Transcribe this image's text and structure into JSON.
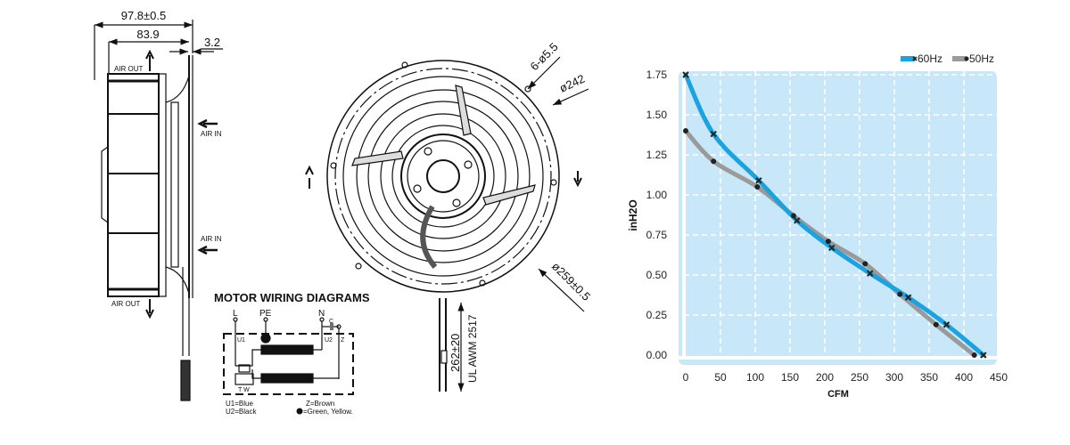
{
  "side_view": {
    "dim_overall": "97.8±0.5",
    "dim_body": "83.9",
    "dim_flange": "3.2",
    "air_out_top": "AIR OUT",
    "air_in_top": "AIR IN",
    "air_in_bottom": "AIR IN",
    "air_out_bottom": "AIR OUT"
  },
  "front_view": {
    "holes": "6-ø5.5",
    "bolt_circle": "ø242",
    "outer_diameter": "ø259±0.5",
    "lead_length": "262±20",
    "lead_spec": "UL AWM 2517"
  },
  "wiring": {
    "title": "MOTOR WIRING DIAGRAMS",
    "terminal_l": "L",
    "terminal_pe": "PE",
    "terminal_n": "N",
    "cap": "C",
    "u1": "U1",
    "u2": "U2",
    "z": "Z",
    "tw": "T W",
    "legend_u1": "U1=Blue",
    "legend_u2": "U2=Black",
    "legend_z": "Z=Brown",
    "legend_pe": "=Green, Yellow."
  },
  "chart_data": {
    "type": "line",
    "xlabel": "CFM",
    "ylabel": "inH2O",
    "xlim": [
      0,
      450
    ],
    "ylim": [
      0,
      1.75
    ],
    "x_ticks": [
      "0",
      "50",
      "100",
      "150",
      "200",
      "250",
      "300",
      "350",
      "400",
      "450"
    ],
    "y_ticks": [
      "0.00",
      "0.25",
      "0.50",
      "0.75",
      "1.00",
      "1.25",
      "1.50",
      "1.75"
    ],
    "grid": true,
    "legend_position": "top-right",
    "background_color": "#c8e7f8",
    "series": [
      {
        "name": "60Hz",
        "color": "#1aa3e0",
        "marker": "x",
        "x": [
          0,
          40,
          105,
          160,
          210,
          265,
          320,
          375,
          428
        ],
        "y": [
          1.75,
          1.38,
          1.09,
          0.84,
          0.67,
          0.51,
          0.36,
          0.19,
          0.0
        ]
      },
      {
        "name": "50Hz",
        "color": "#9a9a9a",
        "marker": "dot",
        "x": [
          0,
          40,
          103,
          155,
          205,
          258,
          308,
          360,
          415
        ],
        "y": [
          1.4,
          1.21,
          1.05,
          0.87,
          0.71,
          0.57,
          0.38,
          0.19,
          0.0
        ]
      }
    ]
  }
}
